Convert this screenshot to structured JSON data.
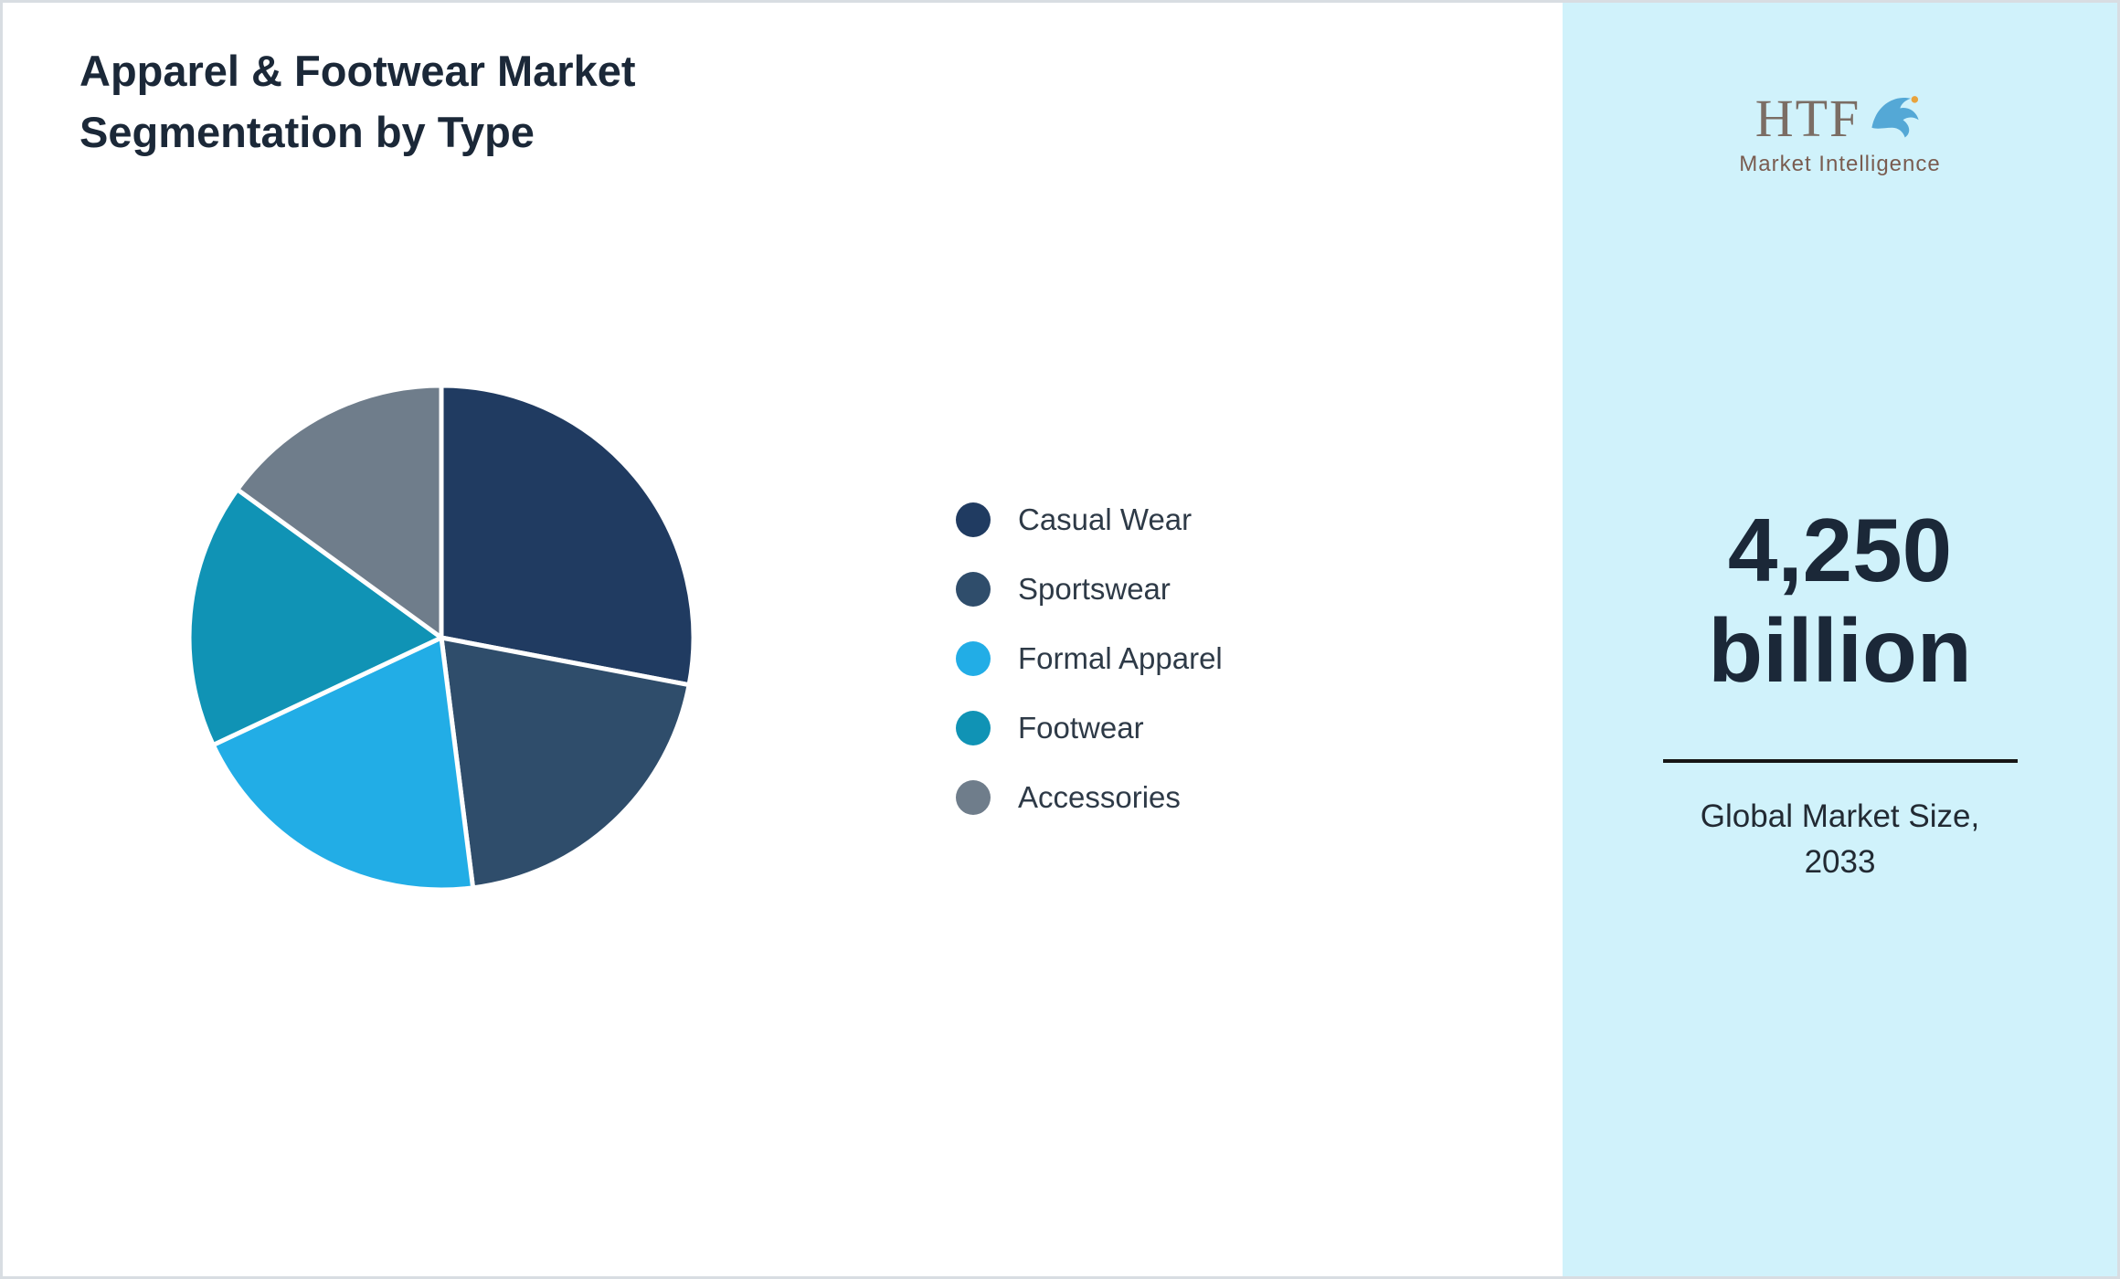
{
  "title": "Apparel & Footwear Market Segmentation by Type",
  "chart_data": {
    "type": "pie",
    "title": "Apparel & Footwear Market Segmentation by Type",
    "categories": [
      "Casual Wear",
      "Sportswear",
      "Formal Apparel",
      "Footwear",
      "Accessories"
    ],
    "values": [
      28,
      20,
      20,
      17,
      15
    ],
    "unit": "%",
    "colors": [
      "#203b61",
      "#2f4d6b",
      "#22ade6",
      "#1093b5",
      "#6f7d8b"
    ],
    "start_angle_deg": 0,
    "direction": "clockwise",
    "legend_position": "right",
    "slice_gap_color": "#ffffff"
  },
  "sidebar": {
    "background": "#d0f2fb",
    "logo": {
      "text": "HTF",
      "subtext": "Market Intelligence",
      "dolphin_color": "#54a8d6"
    },
    "market_size_value": "4,250",
    "market_size_unit": "billion",
    "caption": "Global Market Size, 2033"
  },
  "colors": {
    "title_text": "#1b2838",
    "legend_text": "#2e3a47",
    "sidebar_background": "#d0f2fb",
    "divider": "#161616"
  }
}
